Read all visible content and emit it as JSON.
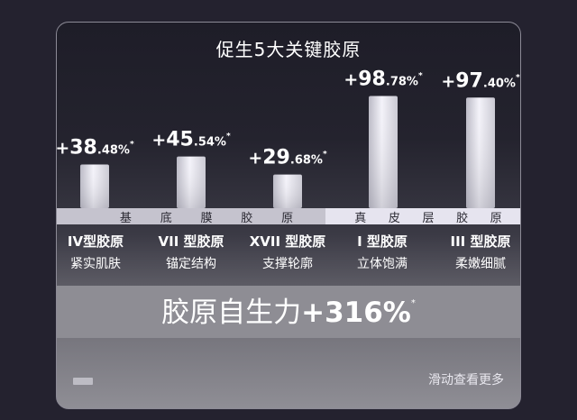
{
  "title": "促生5大关键胶原",
  "band_left": [
    "基",
    "底",
    "膜",
    "胶",
    "原"
  ],
  "band_right": [
    "真",
    "皮",
    "层",
    "胶",
    "原"
  ],
  "chart_data": {
    "type": "bar",
    "title": "促生5大关键胶原",
    "categories": [
      "IV型胶原",
      "VII 型胶原",
      "XVII 型胶原",
      "I 型胶原",
      "III 型胶原"
    ],
    "values": [
      38.48,
      45.54,
      29.68,
      98.78,
      97.4
    ],
    "labels": [
      {
        "sign": "+",
        "int": "38",
        "dec": ".48%",
        "star": "*"
      },
      {
        "sign": "+",
        "int": "45",
        "dec": ".54%",
        "star": "*"
      },
      {
        "sign": "+",
        "int": "29",
        "dec": ".68%",
        "star": "*"
      },
      {
        "sign": "+",
        "int": "98",
        "dec": ".78%",
        "star": "*"
      },
      {
        "sign": "+",
        "int": "97",
        "dec": ".40%",
        "star": "*"
      }
    ],
    "ylim": [
      0,
      100
    ]
  },
  "types": [
    {
      "name": "IV型胶原",
      "desc": "紧实肌肤"
    },
    {
      "name": "VII 型胶原",
      "desc": "锚定结构"
    },
    {
      "name": "XVII 型胶原",
      "desc": "支撑轮廓"
    },
    {
      "name": "I 型胶原",
      "desc": "立体饱满"
    },
    {
      "name": "III 型胶原",
      "desc": "柔嫩细腻"
    }
  ],
  "summary": {
    "prefix": "胶原自生力",
    "value": "+316%",
    "star": "*"
  },
  "hint": "滑动查看更多"
}
